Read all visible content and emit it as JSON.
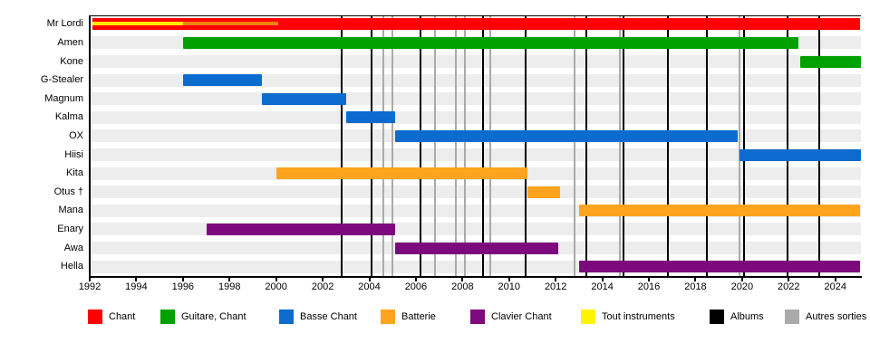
{
  "chart_data": {
    "type": "timeline",
    "description": "Band membership timeline (Gantt-style), 1992-2025, roles by color with album and other-release vertical markers",
    "x_axis": {
      "min_year": 1992,
      "max_year": 2025.1,
      "tick_years": [
        1992,
        1994,
        1996,
        1998,
        2000,
        2002,
        2004,
        2006,
        2008,
        2010,
        2012,
        2014,
        2016,
        2018,
        2020,
        2022,
        2024
      ],
      "tick_labels": [
        "1992",
        "1994",
        "1996",
        "1998",
        "2000",
        "2002",
        "2004",
        "2006",
        "2008",
        "2010",
        "2012",
        "2014",
        "2016",
        "2018",
        "2020",
        "2022",
        "2024"
      ]
    },
    "rows": [
      {
        "label": "Mr Lordi",
        "bars": [
          {
            "role": "Chant",
            "color_key": "chant",
            "start": 1992.1,
            "end": 2025.05
          }
        ],
        "overlays": [
          {
            "role": "Tout instruments",
            "color_key": "tout_overlay",
            "start": 1992.1,
            "end": 1996.0
          },
          {
            "role": "Batterie",
            "color_key": "batterie_overlay",
            "start": 1996.0,
            "end": 2000.1
          }
        ]
      },
      {
        "label": "Amen",
        "bars": [
          {
            "role": "Guitare, Chant",
            "color_key": "guitare",
            "start": 1996.0,
            "end": 2022.4
          }
        ]
      },
      {
        "label": "Kone",
        "bars": [
          {
            "role": "Guitare, Chant",
            "color_key": "guitare",
            "start": 2022.5,
            "end": 2025.1
          }
        ]
      },
      {
        "label": "G-Stealer",
        "bars": [
          {
            "role": "Basse Chant",
            "color_key": "basse",
            "start": 1996.0,
            "end": 1999.4
          }
        ]
      },
      {
        "label": "Magnum",
        "bars": [
          {
            "role": "Basse Chant",
            "color_key": "basse",
            "start": 1999.4,
            "end": 2003.0
          }
        ]
      },
      {
        "label": "Kalma",
        "bars": [
          {
            "role": "Basse Chant",
            "color_key": "basse",
            "start": 2003.0,
            "end": 2005.1
          }
        ]
      },
      {
        "label": "OX",
        "bars": [
          {
            "role": "Basse Chant",
            "color_key": "basse",
            "start": 2005.1,
            "end": 2019.8
          }
        ]
      },
      {
        "label": "Hiisi",
        "bars": [
          {
            "role": "Basse Chant",
            "color_key": "basse",
            "start": 2019.9,
            "end": 2025.1
          }
        ]
      },
      {
        "label": "Kita",
        "bars": [
          {
            "role": "Batterie",
            "color_key": "batterie",
            "start": 2000.0,
            "end": 2010.8
          }
        ]
      },
      {
        "label": "Otus †",
        "bars": [
          {
            "role": "Batterie",
            "color_key": "batterie",
            "start": 2010.8,
            "end": 2012.2
          }
        ]
      },
      {
        "label": "Mana",
        "bars": [
          {
            "role": "Batterie",
            "color_key": "batterie",
            "start": 2013.0,
            "end": 2025.05
          }
        ]
      },
      {
        "label": "Enary",
        "bars": [
          {
            "role": "Clavier Chant",
            "color_key": "clavier",
            "start": 1997.0,
            "end": 2005.1
          }
        ]
      },
      {
        "label": "Awa",
        "bars": [
          {
            "role": "Clavier Chant",
            "color_key": "clavier",
            "start": 2005.1,
            "end": 2012.1
          }
        ]
      },
      {
        "label": "Hella",
        "bars": [
          {
            "role": "Clavier Chant",
            "color_key": "clavier",
            "start": 2013.0,
            "end": 2025.05
          }
        ]
      }
    ],
    "events": {
      "albums_years": [
        2002.8,
        2004.1,
        2006.2,
        2008.9,
        2010.7,
        2013.3,
        2014.9,
        2016.8,
        2018.5,
        2020.1,
        2021.95,
        2023.3
      ],
      "autres_sorties_years": [
        2004.6,
        2005.0,
        2006.8,
        2007.7,
        2008.1,
        2009.2,
        2012.8,
        2014.75,
        2019.9
      ]
    },
    "legend": [
      {
        "label": "Chant",
        "color": "#FF0000"
      },
      {
        "label": "Guitare, Chant",
        "color": "#00A100"
      },
      {
        "label": "Basse Chant",
        "color": "#0B6BCE"
      },
      {
        "label": "Batterie",
        "color": "#FFA41E"
      },
      {
        "label": "Clavier Chant",
        "color": "#7D0A7D"
      },
      {
        "label": "Tout instruments",
        "color": "#FFF500"
      },
      {
        "label": "Albums",
        "color": "#000000"
      },
      {
        "label": "Autres sorties",
        "color": "#AAAAAA"
      }
    ]
  },
  "colors": {
    "chant": "#FF0000",
    "guitare": "#00A100",
    "basse": "#0B6BCE",
    "batterie": "#FFA41E",
    "clavier": "#7D0A7D",
    "tout_overlay": "#FFE800",
    "batterie_overlay": "#F08010",
    "album_line": "#000000",
    "other_release_line": "#AAAAAA",
    "row_stripe": "#EDEDED",
    "axis": "#000000"
  }
}
